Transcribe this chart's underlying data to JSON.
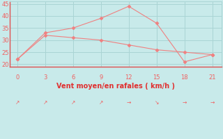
{
  "xlabel": "Vent moyen/en rafales ( km/h )",
  "x": [
    0,
    3,
    6,
    9,
    12,
    15,
    18,
    21
  ],
  "y_rafales": [
    22,
    33,
    35,
    39,
    44,
    37,
    21,
    24
  ],
  "y_moyen": [
    22,
    32,
    31,
    30,
    28,
    26,
    25,
    24
  ],
  "line_color": "#f08080",
  "marker_color": "#f08080",
  "bg_color": "#c8eaea",
  "grid_color": "#aad4d4",
  "tick_color": "#f06060",
  "label_color": "#e03030",
  "spine_color": "#e05050",
  "ylim": [
    19,
    46
  ],
  "xlim": [
    -0.8,
    22.0
  ],
  "yticks": [
    20,
    25,
    30,
    35,
    40,
    45
  ],
  "xticks": [
    0,
    3,
    6,
    9,
    12,
    15,
    18,
    21
  ],
  "wind_dirs": [
    "↗",
    "↗",
    "↗",
    "↗",
    "→",
    "↘",
    "→",
    "→"
  ],
  "figsize": [
    3.2,
    2.0
  ],
  "dpi": 100
}
